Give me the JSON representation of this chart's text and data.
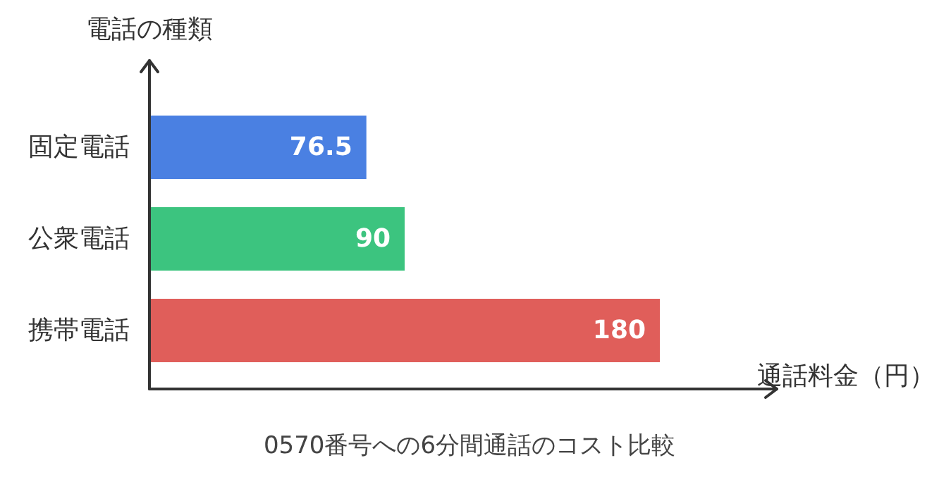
{
  "chart_data": {
    "type": "bar",
    "orientation": "horizontal",
    "title": "0570番号への6分間通話のコスト比較",
    "xlabel": "通話料金（円）",
    "ylabel": "電話の種類",
    "categories": [
      "固定電話",
      "公衆電話",
      "携帯電話"
    ],
    "values": [
      76.5,
      90,
      180
    ],
    "colors": [
      "#4a80e2",
      "#3cc47f",
      "#e05e5a"
    ],
    "data_labels": true
  }
}
